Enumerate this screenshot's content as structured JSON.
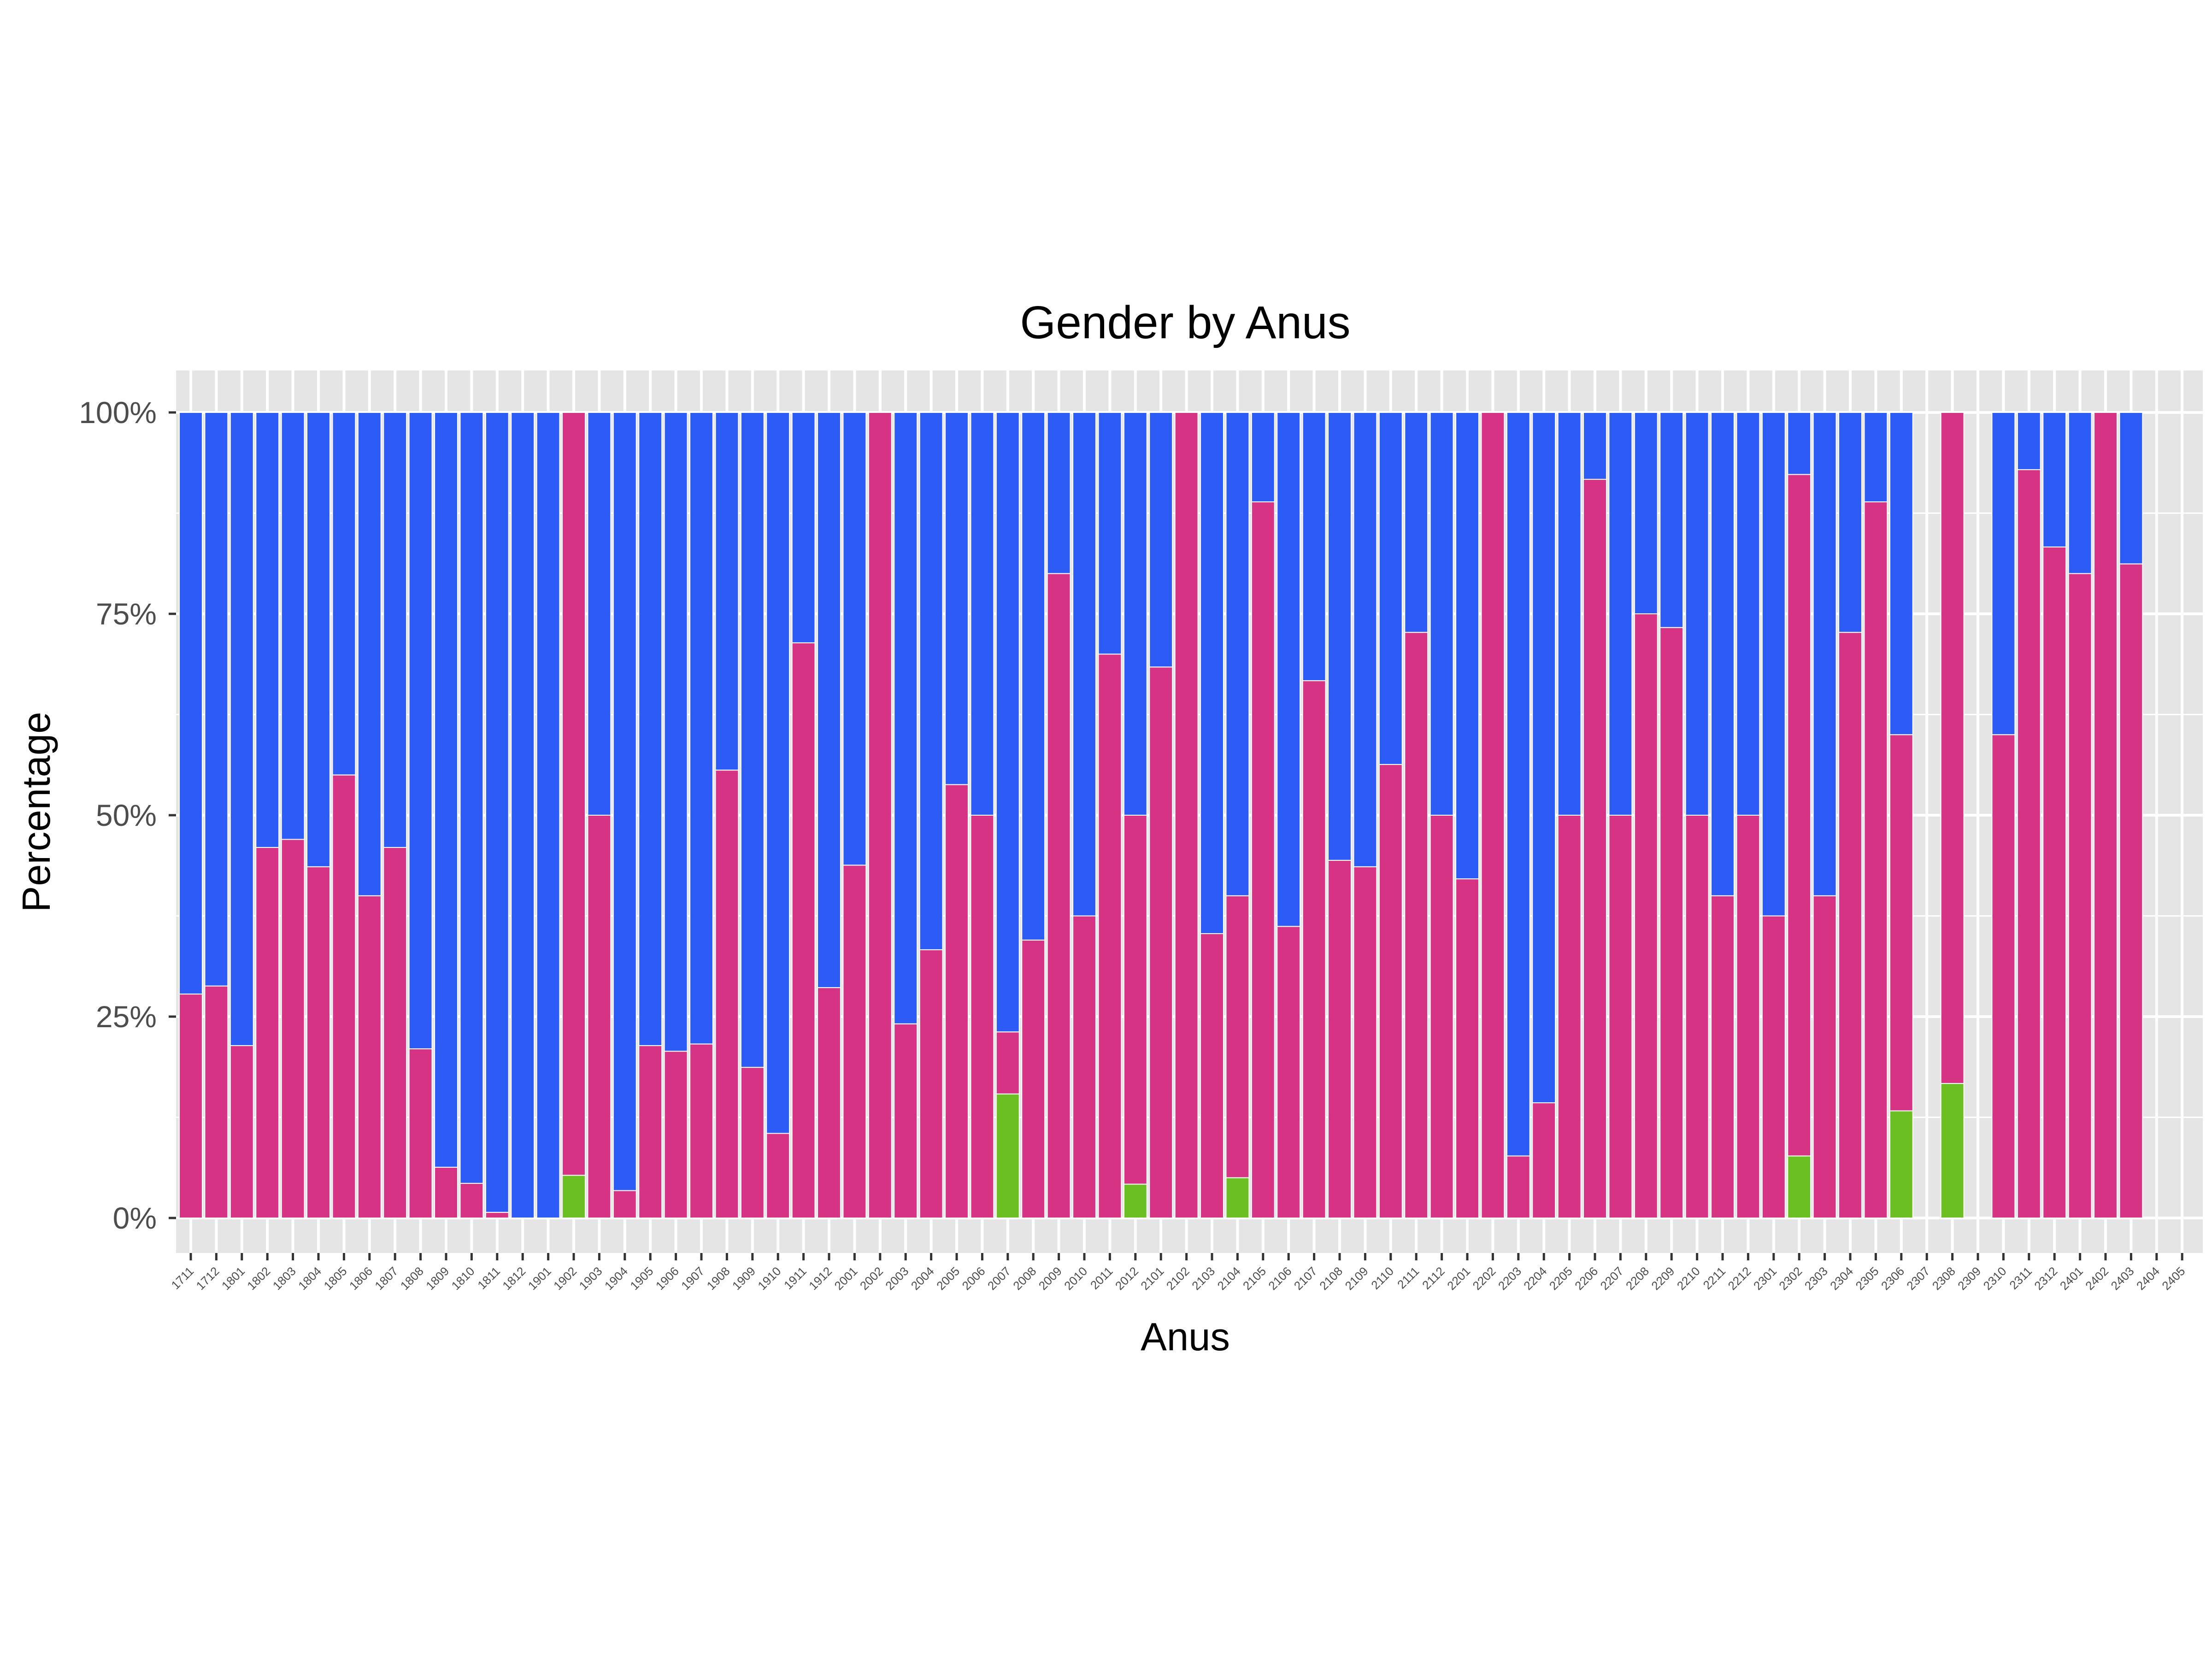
{
  "chart_data": {
    "type": "bar",
    "stacked": "percent",
    "title": "Gender by Anus",
    "xlabel": "Anus",
    "ylabel": "Percentage",
    "ylim": [
      0,
      100
    ],
    "yticks": [
      "0%",
      "25%",
      "50%",
      "75%",
      "100%"
    ],
    "grid": true,
    "legend": "none",
    "categories": [
      "1711",
      "1712",
      "1801",
      "1802",
      "1803",
      "1804",
      "1805",
      "1806",
      "1807",
      "1808",
      "1809",
      "1810",
      "1811",
      "1812",
      "1901",
      "1902",
      "1903",
      "1904",
      "1905",
      "1906",
      "1907",
      "1908",
      "1909",
      "1910",
      "1911",
      "1912",
      "2001",
      "2002",
      "2003",
      "2004",
      "2005",
      "2006",
      "2007",
      "2008",
      "2009",
      "2010",
      "2011",
      "2012",
      "2101",
      "2102",
      "2103",
      "2104",
      "2105",
      "2106",
      "2107",
      "2108",
      "2109",
      "2110",
      "2111",
      "2112",
      "2201",
      "2202",
      "2203",
      "2204",
      "2205",
      "2206",
      "2207",
      "2208",
      "2209",
      "2210",
      "2211",
      "2212",
      "2301",
      "2302",
      "2303",
      "2304",
      "2305",
      "2306",
      "2307",
      "2308",
      "2309",
      "2310",
      "2311",
      "2312",
      "2401",
      "2402",
      "2403",
      "2404",
      "2405"
    ],
    "series": [
      {
        "color": "#6bbf23",
        "values": [
          0,
          0,
          0,
          0,
          0,
          0,
          0,
          0,
          0,
          0,
          0,
          0,
          0,
          0,
          0,
          5.3,
          0,
          0,
          0,
          0,
          0,
          0,
          0,
          0,
          0,
          0,
          0,
          0,
          0,
          0,
          0,
          0,
          15.4,
          0,
          0,
          0,
          0,
          4.2,
          0,
          0,
          0,
          5,
          0,
          0,
          0,
          0,
          0,
          0,
          0,
          0,
          0,
          0,
          0,
          0,
          0,
          0,
          0,
          0,
          0,
          0,
          0,
          0,
          0,
          7.7,
          0,
          0,
          0,
          13.3,
          null,
          16.7,
          null,
          0,
          0,
          0,
          0,
          0,
          0,
          null,
          null
        ]
      },
      {
        "color": "#d63384",
        "values": [
          27.8,
          28.8,
          21.4,
          46,
          47,
          43.6,
          55,
          40,
          46,
          21,
          6.3,
          4.3,
          0.7,
          0,
          0,
          94.7,
          50,
          3.4,
          21.4,
          20.7,
          21.6,
          55.6,
          18.7,
          10.5,
          71.4,
          28.6,
          43.8,
          100,
          24.1,
          33.3,
          53.8,
          50,
          7.7,
          34.5,
          80,
          37.5,
          70,
          45.8,
          68.4,
          100,
          35.3,
          35,
          88.9,
          36.2,
          66.7,
          44.4,
          43.6,
          56.3,
          72.7,
          50,
          42.1,
          100,
          7.7,
          14.3,
          50,
          91.7,
          50,
          75,
          73.3,
          50,
          40,
          50,
          37.5,
          84.6,
          40,
          72.7,
          88.9,
          46.7,
          null,
          83.3,
          null,
          60,
          92.9,
          83.3,
          80,
          100,
          81.2,
          null,
          null
        ]
      },
      {
        "color": "#2c5cf5",
        "values": [
          72.2,
          71.2,
          78.6,
          54,
          53,
          56.4,
          45,
          60,
          54,
          79,
          93.7,
          95.7,
          99.3,
          100,
          100,
          0,
          50,
          96.6,
          78.6,
          79.3,
          78.4,
          44.4,
          81.3,
          89.5,
          28.6,
          71.4,
          56.2,
          0,
          75.9,
          66.7,
          46.2,
          50,
          76.9,
          65.5,
          20,
          62.5,
          30,
          50,
          31.6,
          0,
          64.7,
          60,
          11.1,
          63.8,
          33.3,
          55.6,
          56.4,
          43.7,
          27.3,
          50,
          57.9,
          0,
          92.3,
          85.7,
          50,
          8.3,
          50,
          25,
          26.7,
          50,
          60,
          50,
          62.5,
          7.7,
          60,
          27.3,
          11.1,
          40,
          null,
          0,
          null,
          40,
          7.1,
          16.7,
          20,
          0,
          18.8,
          null,
          null
        ]
      }
    ]
  }
}
